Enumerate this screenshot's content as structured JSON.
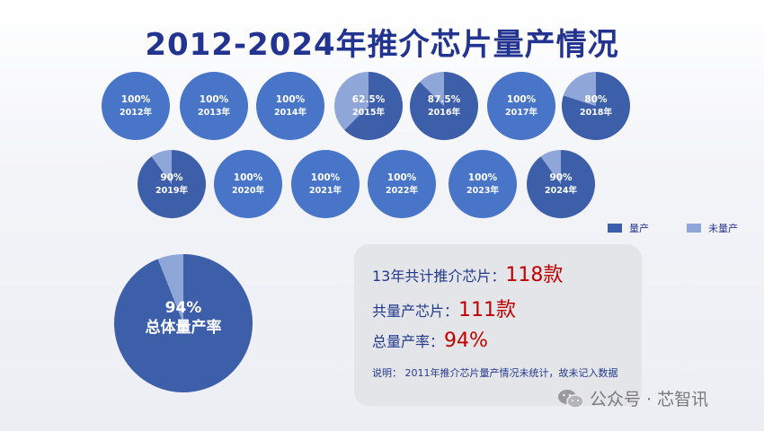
{
  "title": "2012-2024年推介芯片量产情况",
  "colors": {
    "produced": "#3d5ea8",
    "produced_light": "#4875c8",
    "not_produced": "#8fa6d8",
    "accent_text": "#c00000",
    "title": "#22348f"
  },
  "chart_data": {
    "type": "pie",
    "title": "2012-2024年推介芯片量产情况",
    "legend": [
      "量产",
      "未量产"
    ],
    "legend_position": "right",
    "pies": [
      {
        "year": "2012年",
        "label": "100%",
        "value": 100
      },
      {
        "year": "2013年",
        "label": "100%",
        "value": 100
      },
      {
        "year": "2014年",
        "label": "100%",
        "value": 100
      },
      {
        "year": "2015年",
        "label": "62.5%",
        "value": 62.5
      },
      {
        "year": "2016年",
        "label": "87.5%",
        "value": 87.5
      },
      {
        "year": "2017年",
        "label": "100%",
        "value": 100
      },
      {
        "year": "2018年",
        "label": "80%",
        "value": 80
      },
      {
        "year": "2019年",
        "label": "90%",
        "value": 90
      },
      {
        "year": "2020年",
        "label": "100%",
        "value": 100
      },
      {
        "year": "2021年",
        "label": "100%",
        "value": 100
      },
      {
        "year": "2022年",
        "label": "100%",
        "value": 100
      },
      {
        "year": "2023年",
        "label": "100%",
        "value": 100
      },
      {
        "year": "2024年",
        "label": "90%",
        "value": 90
      }
    ],
    "total": {
      "label": "94%",
      "caption": "总体量产率",
      "value": 94
    }
  },
  "info": {
    "line1_label": "13年共计推介芯片：",
    "line1_value": "118款",
    "line2_label": "共量产芯片：",
    "line2_value": "111款",
    "line3_label": "总量产率：",
    "line3_value": "94%",
    "note": "说明：  2011年推介芯片量产情况未统计，故未记入数据"
  },
  "watermark": {
    "icon": "wechat-icon",
    "text": "公众号 · 芯智讯"
  }
}
